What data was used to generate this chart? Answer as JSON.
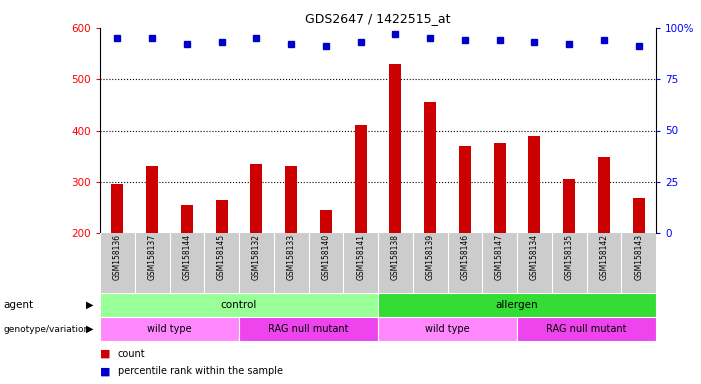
{
  "title": "GDS2647 / 1422515_at",
  "samples": [
    "GSM158136",
    "GSM158137",
    "GSM158144",
    "GSM158145",
    "GSM158132",
    "GSM158133",
    "GSM158140",
    "GSM158141",
    "GSM158138",
    "GSM158139",
    "GSM158146",
    "GSM158147",
    "GSM158134",
    "GSM158135",
    "GSM158142",
    "GSM158143"
  ],
  "counts": [
    295,
    330,
    255,
    265,
    335,
    330,
    245,
    410,
    530,
    455,
    370,
    375,
    390,
    305,
    348,
    268
  ],
  "percentile_ranks": [
    95,
    95,
    92,
    93,
    95,
    92,
    91,
    93,
    97,
    95,
    94,
    94,
    93,
    92,
    94,
    91
  ],
  "ylim_left": [
    200,
    600
  ],
  "ylim_right": [
    0,
    100
  ],
  "yticks_left": [
    200,
    300,
    400,
    500,
    600
  ],
  "yticks_right": [
    0,
    25,
    50,
    75,
    100
  ],
  "bar_color": "#cc0000",
  "dot_color": "#0000cc",
  "agent_groups": [
    {
      "label": "control",
      "start": 0,
      "end": 8,
      "color": "#99ff99"
    },
    {
      "label": "allergen",
      "start": 8,
      "end": 16,
      "color": "#33dd33"
    }
  ],
  "genotype_groups": [
    {
      "label": "wild type",
      "start": 0,
      "end": 4,
      "color": "#ff88ff"
    },
    {
      "label": "RAG null mutant",
      "start": 4,
      "end": 8,
      "color": "#ee44ee"
    },
    {
      "label": "wild type",
      "start": 8,
      "end": 12,
      "color": "#ff88ff"
    },
    {
      "label": "RAG null mutant",
      "start": 12,
      "end": 16,
      "color": "#ee44ee"
    }
  ],
  "agent_label": "agent",
  "genotype_label": "genotype/variation",
  "legend_count_label": "count",
  "legend_pct_label": "percentile rank within the sample",
  "tick_bg_color": "#cccccc",
  "bar_width": 0.35,
  "dot_size": 5,
  "grid_yticks": [
    300,
    400,
    500
  ],
  "right_axis_top_label": "100%"
}
